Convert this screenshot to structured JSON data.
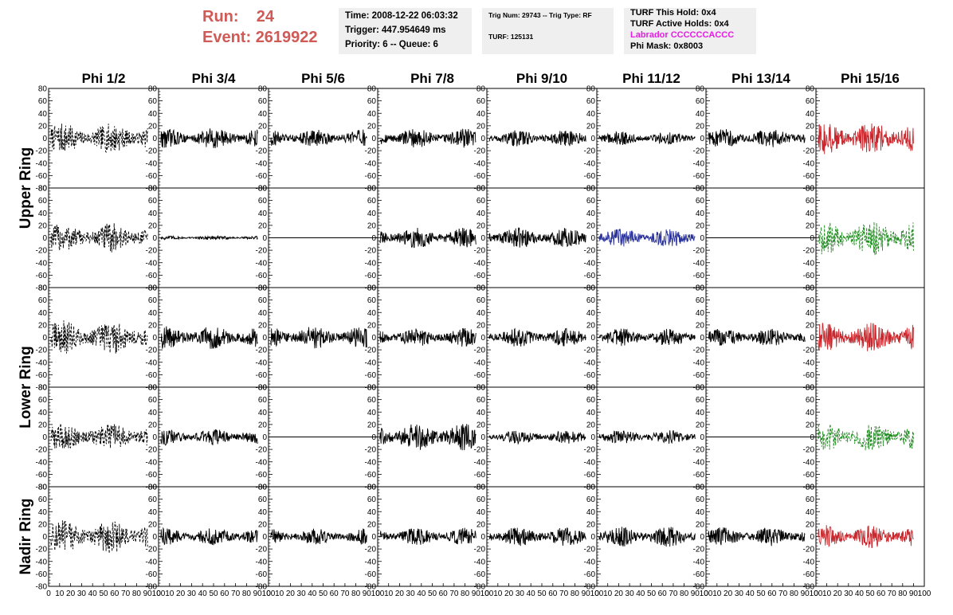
{
  "header": {
    "run_label": "Run:",
    "run_value": "24",
    "event_label": "Event:",
    "event_value": "2619922"
  },
  "info_box_1": {
    "time": "Time: 2008-12-22 06:03:32",
    "trigger": "Trigger: 447.954649 ms",
    "priority": "Priority: 6 -- Queue: 6"
  },
  "info_box_2": {
    "trig": "Trig Num: 29743 -- Trig Type: RF",
    "turf": "TURF: 125131"
  },
  "info_box_3": {
    "this_hold": "TURF This Hold: 0x4",
    "active_holds": "TURF Active Holds: 0x4",
    "labrador": "Labrador CCCCCCACCC",
    "phi_mask": "Phi Mask: 0x8003"
  },
  "colors": {
    "black": "#000000",
    "red": "#c8282d",
    "green": "#1e8a1e",
    "blue": "#28309a",
    "header_red": "#cf5a56",
    "magenta": "#e51ce5",
    "info_bg": "#efefef"
  },
  "chart_data": {
    "type": "line",
    "columns": [
      "Phi 1/2",
      "Phi 3/4",
      "Phi 5/6",
      "Phi 7/8",
      "Phi 9/10",
      "Phi 11/12",
      "Phi 13/14",
      "Phi 15/16"
    ],
    "ring_labels": [
      {
        "label": "Upper Ring",
        "rows": [
          0,
          1
        ]
      },
      {
        "label": "Lower Ring",
        "rows": [
          2,
          3
        ]
      },
      {
        "label": "Nadir Ring",
        "rows": [
          4,
          4
        ]
      }
    ],
    "xlim": [
      0,
      100
    ],
    "ylim": [
      -80,
      80
    ],
    "yticks": [
      80,
      60,
      40,
      20,
      0,
      -20,
      -40,
      -60,
      -80
    ],
    "xtick_labels": [
      "0",
      "10",
      "20",
      "30",
      "40",
      "50",
      "60",
      "70",
      "80",
      "90",
      "100"
    ],
    "rows": [
      [
        {
          "style": "dashed",
          "color": "black",
          "amp": 22,
          "x": [
            2,
            90
          ]
        },
        {
          "style": "solid",
          "color": "black",
          "amp": 15,
          "x": [
            2,
            90
          ]
        },
        {
          "style": "solid",
          "color": "black",
          "amp": 13,
          "x": [
            2,
            90
          ]
        },
        {
          "style": "solid",
          "color": "black",
          "amp": 14,
          "x": [
            2,
            90
          ]
        },
        {
          "style": "solid",
          "color": "black",
          "amp": 12,
          "x": [
            2,
            90
          ]
        },
        {
          "style": "solid",
          "color": "black",
          "amp": 10,
          "x": [
            2,
            90
          ]
        },
        {
          "style": "solid",
          "color": "black",
          "amp": 14,
          "x": [
            2,
            90
          ]
        },
        {
          "style": "solid",
          "color": "red",
          "amp": 24,
          "x": [
            2,
            90
          ]
        }
      ],
      [
        {
          "style": "dashed",
          "color": "black",
          "amp": 22,
          "x": [
            2,
            90
          ]
        },
        {
          "style": "solid",
          "color": "black",
          "amp": 3,
          "x": [
            2,
            90
          ]
        },
        {
          "style": "flat",
          "color": "black",
          "amp": 0,
          "x": [
            0,
            100
          ]
        },
        {
          "style": "solid",
          "color": "black",
          "amp": 15,
          "x": [
            2,
            90
          ]
        },
        {
          "style": "solid",
          "color": "black",
          "amp": 15,
          "x": [
            2,
            90
          ]
        },
        {
          "style": "solid",
          "color": "blue",
          "amp": 14,
          "x": [
            2,
            90
          ]
        },
        {
          "style": "flat",
          "color": "black",
          "amp": 0,
          "x": [
            0,
            100
          ]
        },
        {
          "style": "dashed",
          "color": "green",
          "amp": 26,
          "x": [
            2,
            90
          ]
        }
      ],
      [
        {
          "style": "dashed",
          "color": "black",
          "amp": 25,
          "x": [
            2,
            90
          ]
        },
        {
          "style": "solid",
          "color": "black",
          "amp": 17,
          "x": [
            2,
            90
          ]
        },
        {
          "style": "solid",
          "color": "black",
          "amp": 17,
          "x": [
            2,
            90
          ]
        },
        {
          "style": "solid",
          "color": "black",
          "amp": 14,
          "x": [
            2,
            90
          ]
        },
        {
          "style": "solid",
          "color": "black",
          "amp": 14,
          "x": [
            2,
            90
          ]
        },
        {
          "style": "solid",
          "color": "black",
          "amp": 13,
          "x": [
            2,
            90
          ]
        },
        {
          "style": "solid",
          "color": "black",
          "amp": 13,
          "x": [
            2,
            90
          ]
        },
        {
          "style": "solid",
          "color": "red",
          "amp": 22,
          "x": [
            2,
            90
          ]
        }
      ],
      [
        {
          "style": "dashed",
          "color": "black",
          "amp": 20,
          "x": [
            2,
            90
          ]
        },
        {
          "style": "solid",
          "color": "black",
          "amp": 12,
          "x": [
            2,
            90
          ]
        },
        {
          "style": "flat",
          "color": "black",
          "amp": 0,
          "x": [
            0,
            100
          ]
        },
        {
          "style": "solid",
          "color": "black",
          "amp": 20,
          "x": [
            2,
            90
          ]
        },
        {
          "style": "solid",
          "color": "black",
          "amp": 10,
          "x": [
            2,
            90
          ]
        },
        {
          "style": "solid",
          "color": "black",
          "amp": 10,
          "x": [
            2,
            90
          ]
        },
        {
          "style": "flat",
          "color": "black",
          "amp": 0,
          "x": [
            0,
            100
          ]
        },
        {
          "style": "dashed",
          "color": "green",
          "amp": 22,
          "x": [
            2,
            90
          ]
        }
      ],
      [
        {
          "style": "dashed",
          "color": "black",
          "amp": 25,
          "x": [
            2,
            90
          ]
        },
        {
          "style": "solid",
          "color": "black",
          "amp": 13,
          "x": [
            2,
            90
          ]
        },
        {
          "style": "solid",
          "color": "black",
          "amp": 12,
          "x": [
            2,
            90
          ]
        },
        {
          "style": "solid",
          "color": "black",
          "amp": 13,
          "x": [
            2,
            90
          ]
        },
        {
          "style": "solid",
          "color": "black",
          "amp": 14,
          "x": [
            2,
            90
          ]
        },
        {
          "style": "solid",
          "color": "black",
          "amp": 15,
          "x": [
            2,
            90
          ]
        },
        {
          "style": "solid",
          "color": "black",
          "amp": 14,
          "x": [
            2,
            90
          ]
        },
        {
          "style": "solid",
          "color": "red",
          "amp": 17,
          "x": [
            2,
            90
          ]
        }
      ]
    ]
  }
}
